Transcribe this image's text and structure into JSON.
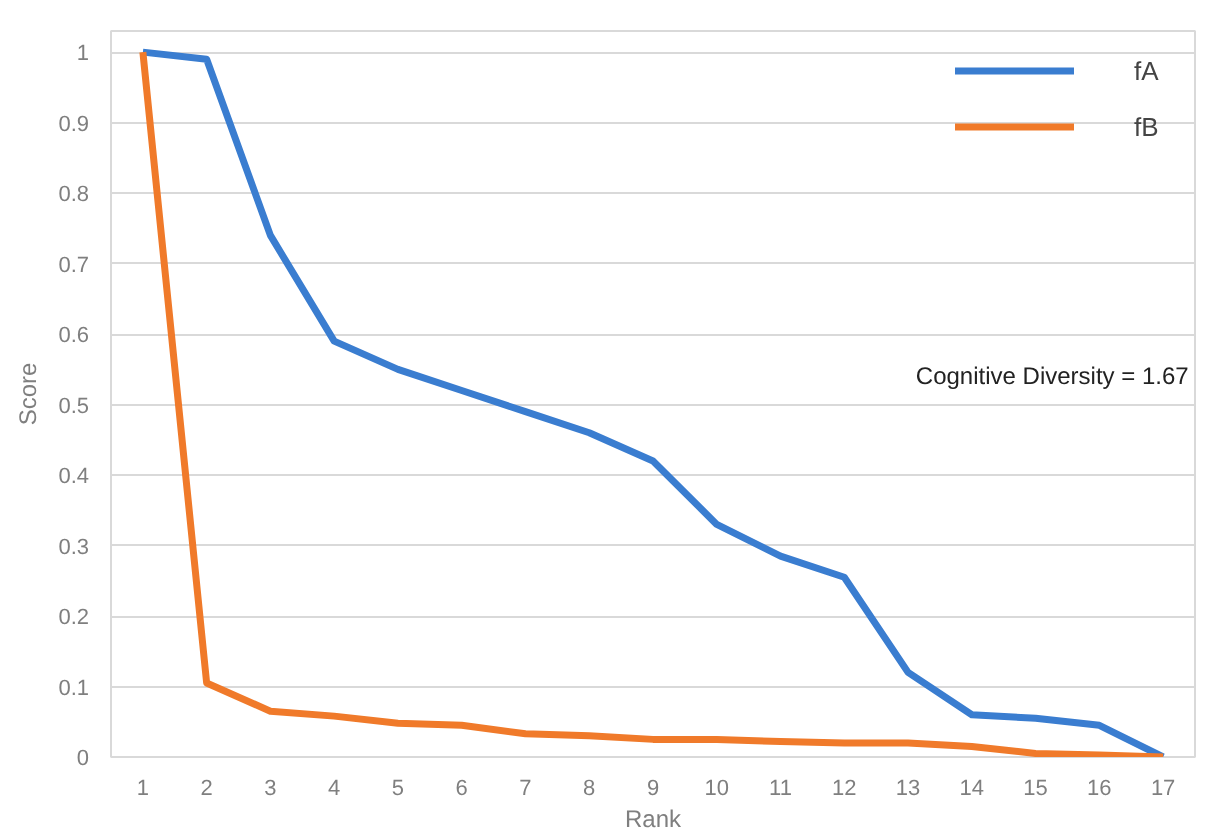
{
  "chart_data": {
    "type": "line",
    "xlabel": "Rank",
    "ylabel": "Score",
    "x": [
      1,
      2,
      3,
      4,
      5,
      6,
      7,
      8,
      9,
      10,
      11,
      12,
      13,
      14,
      15,
      16,
      17
    ],
    "xlim": [
      0.5,
      17.5
    ],
    "xticks": [
      1,
      2,
      3,
      4,
      5,
      6,
      7,
      8,
      9,
      10,
      11,
      12,
      13,
      14,
      15,
      16,
      17
    ],
    "series": [
      {
        "name": "fA",
        "color": "#3a7dd0",
        "values": [
          1,
          0.99,
          0.74,
          0.59,
          0.55,
          0.52,
          0.49,
          0.46,
          0.42,
          0.33,
          0.285,
          0.255,
          0.12,
          0.06,
          0.055,
          0.045,
          0
        ]
      },
      {
        "name": "fB",
        "color": "#f07a2a",
        "values": [
          1,
          0.105,
          0.065,
          0.058,
          0.048,
          0.045,
          0.033,
          0.03,
          0.025,
          0.025,
          0.022,
          0.02,
          0.02,
          0.015,
          0.005,
          0.003,
          0
        ]
      }
    ],
    "ylim": [
      0,
      1
    ],
    "yticks": [
      0,
      0.1,
      0.2,
      0.3,
      0.4,
      0.5,
      0.6,
      0.7,
      0.8,
      0.9,
      1
    ],
    "grid": "y",
    "legend": "top right",
    "marker": "none",
    "line_style": "solid",
    "annotations": [
      "Cognitive Diversity = 1.67"
    ]
  }
}
